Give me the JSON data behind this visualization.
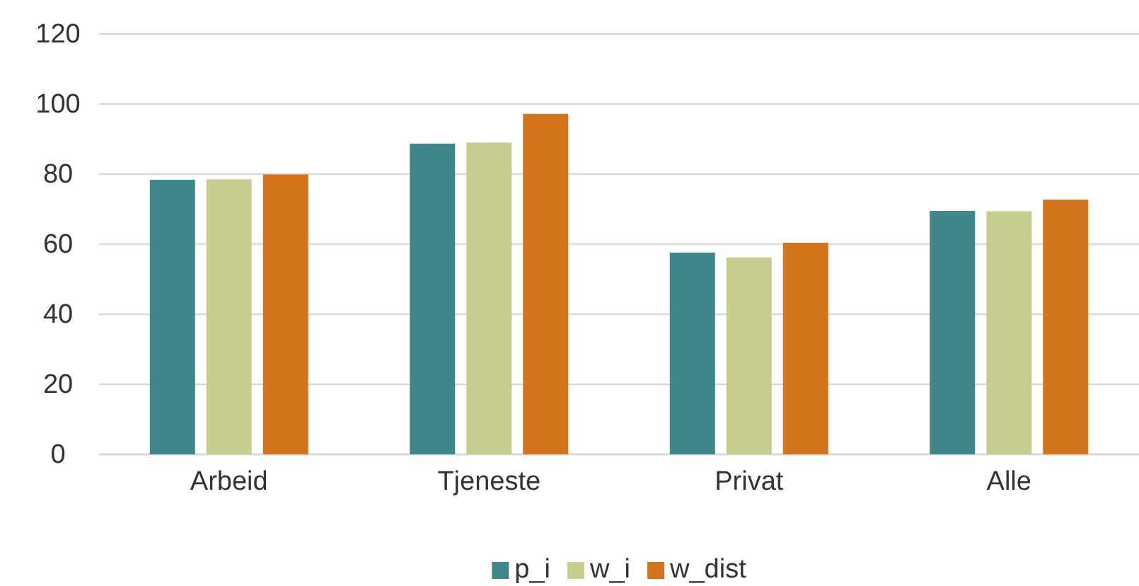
{
  "chart_data": {
    "type": "bar",
    "categories": [
      "Arbeid",
      "Tjeneste",
      "Privat",
      "Alle"
    ],
    "series": [
      {
        "name": "p_i",
        "color": "#40868a",
        "values": [
          78.4,
          88.7,
          57.6,
          69.5
        ]
      },
      {
        "name": "w_i",
        "color": "#c6cd8f",
        "values": [
          78.5,
          89.0,
          56.2,
          69.4
        ]
      },
      {
        "name": "w_dist",
        "color": "#d4741d",
        "values": [
          79.9,
          97.2,
          60.4,
          72.7
        ]
      }
    ],
    "ylim": [
      0,
      120
    ],
    "yticks": [
      0,
      20,
      40,
      60,
      80,
      100,
      120
    ],
    "grid": "y",
    "legend": "bottom"
  }
}
